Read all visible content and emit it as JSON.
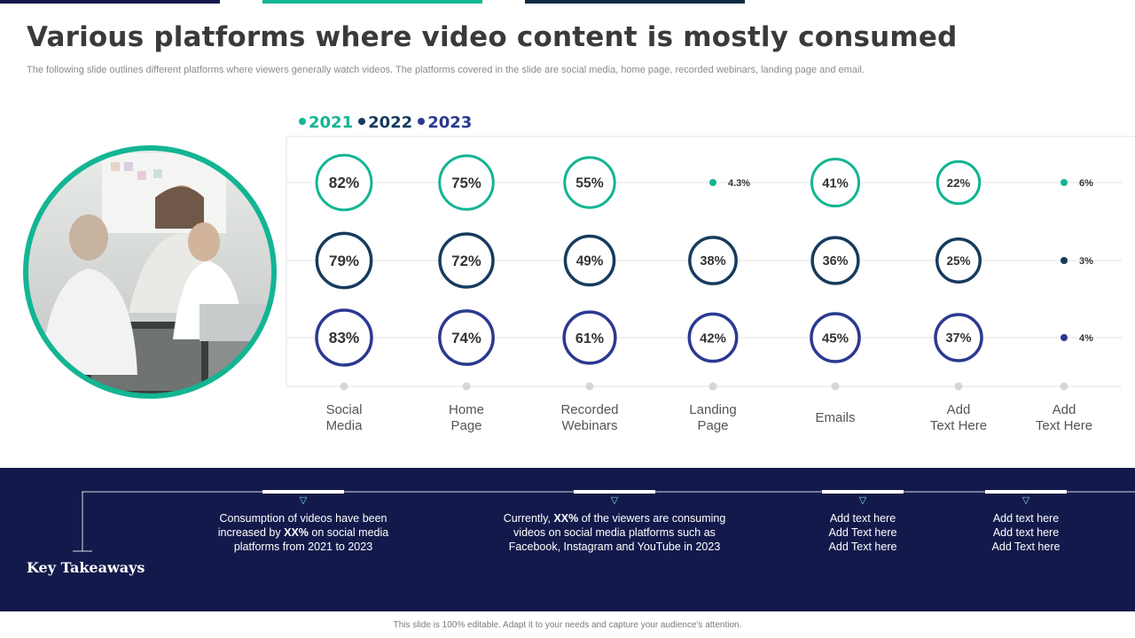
{
  "colors": {
    "teal": "#13b593",
    "navy": "#163b5e",
    "indigo": "#2b3990",
    "panel": "#131a4b",
    "topbar_1": "#131a4b",
    "topbar_2": "#13b593",
    "topbar_3": "#0e2b45"
  },
  "title": "Various platforms where video content is mostly consumed",
  "subtitle": "The following slide outlines different platforms where viewers generally watch videos. The platforms covered in the slide are social media, home page, recorded webinars, landing page and email.",
  "legend": [
    {
      "label": "2021",
      "color": "#13b593"
    },
    {
      "label": "2022",
      "color": "#163b5e"
    },
    {
      "label": "2023",
      "color": "#2b3990"
    }
  ],
  "photo": {
    "icon": "office-team-photo"
  },
  "chart_data": {
    "type": "bubble",
    "categories": [
      [
        "Social",
        "Media"
      ],
      [
        "Home",
        "Page"
      ],
      [
        "Recorded",
        "Webinars"
      ],
      [
        "Landing",
        "Page"
      ],
      [
        "Emails"
      ],
      [
        "Add",
        "Text Here"
      ],
      [
        "Add",
        "Text Here"
      ]
    ],
    "series": [
      {
        "name": "2021",
        "color": "#13b593",
        "values": [
          82,
          75,
          55,
          4.3,
          41,
          22,
          6
        ],
        "labels": [
          "82%",
          "75%",
          "55%",
          "4.3%",
          "41%",
          "22%",
          "6%"
        ]
      },
      {
        "name": "2022",
        "color": "#163b5e",
        "values": [
          79,
          72,
          49,
          38,
          36,
          25,
          3
        ],
        "labels": [
          "79%",
          "72%",
          "49%",
          "38%",
          "36%",
          "25%",
          "3%"
        ]
      },
      {
        "name": "2023",
        "color": "#2b3990",
        "values": [
          83,
          74,
          61,
          42,
          45,
          37,
          4
        ],
        "labels": [
          "83%",
          "74%",
          "61%",
          "42%",
          "45%",
          "37%",
          "4%"
        ]
      }
    ],
    "unit": "%",
    "legend_position": "top-left"
  },
  "takeaways": {
    "label": "Key Takeaways",
    "items": [
      {
        "lines": [
          [
            "Consumption of videos have been"
          ],
          [
            "increased by ",
            "XX%",
            " on social media"
          ],
          [
            "platforms from 2021 to 2023"
          ]
        ]
      },
      {
        "lines": [
          [
            "Currently, ",
            "XX%",
            " of the viewers are consuming"
          ],
          [
            "videos on social media platforms such as"
          ],
          [
            "Facebook, Instagram and YouTube in 2023"
          ]
        ]
      },
      {
        "lines": [
          [
            "Add text here"
          ],
          [
            "Add Text here"
          ],
          [
            "Add Text here"
          ]
        ]
      },
      {
        "lines": [
          [
            "Add text here"
          ],
          [
            "Add text here"
          ],
          [
            "Add Text here"
          ]
        ]
      }
    ]
  },
  "footer": "This slide is 100% editable. Adapt it to your needs and capture your audience's attention."
}
